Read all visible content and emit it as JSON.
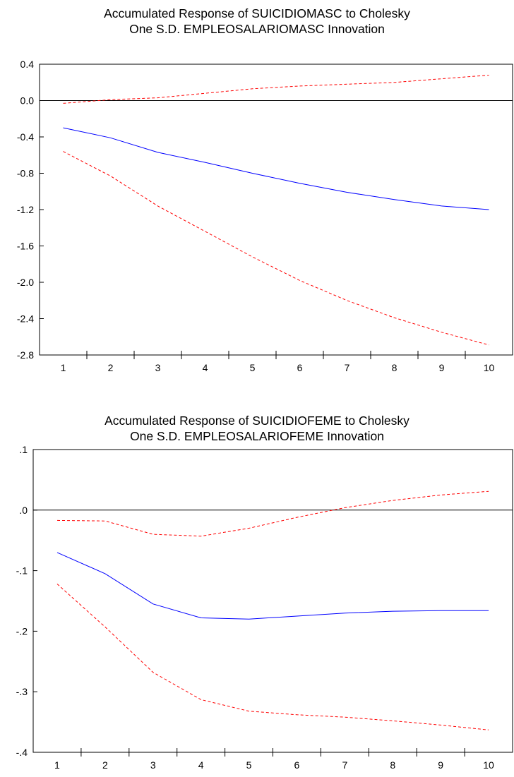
{
  "chart_data": [
    {
      "type": "line",
      "title": [
        "Accumulated Response of SUICIDIOMASC to Cholesky",
        "One S.D. EMPLEOSALARIOMASC Innovation"
      ],
      "x": [
        1,
        2,
        3,
        4,
        5,
        6,
        7,
        8,
        9,
        10
      ],
      "series": [
        {
          "role": "response",
          "color": "#0000ff",
          "style": "solid",
          "values": [
            -0.3,
            -0.41,
            -0.57,
            -0.68,
            -0.8,
            -0.91,
            -1.01,
            -1.09,
            -1.16,
            -1.2
          ]
        },
        {
          "role": "upper-band",
          "color": "#ff0000",
          "style": "dashed",
          "values": [
            -0.03,
            0.01,
            0.03,
            0.08,
            0.13,
            0.16,
            0.18,
            0.2,
            0.24,
            0.28
          ]
        },
        {
          "role": "lower-band",
          "color": "#ff0000",
          "style": "dashed",
          "values": [
            -0.56,
            -0.83,
            -1.16,
            -1.44,
            -1.72,
            -1.98,
            -2.2,
            -2.39,
            -2.55,
            -2.69
          ]
        }
      ],
      "ylim": [
        -2.8,
        0.4
      ],
      "yticks": [
        0.4,
        0.0,
        -0.4,
        -0.8,
        -1.2,
        -1.6,
        -2.0,
        -2.4,
        -2.8
      ],
      "ytick_labels": [
        "0.4",
        "0.0",
        "-0.4",
        "-0.8",
        "-1.2",
        "-1.6",
        "-2.0",
        "-2.4",
        "-2.8"
      ],
      "xtick_labels": [
        "1",
        "2",
        "3",
        "4",
        "5",
        "6",
        "7",
        "8",
        "9",
        "10"
      ],
      "zero_line": true,
      "grid": false
    },
    {
      "type": "line",
      "title": [
        "Accumulated Response of SUICIDIOFEME to Cholesky",
        "One S.D. EMPLEOSALARIOFEME Innovation"
      ],
      "x": [
        1,
        2,
        3,
        4,
        5,
        6,
        7,
        8,
        9,
        10
      ],
      "series": [
        {
          "role": "response",
          "color": "#0000ff",
          "style": "solid",
          "values": [
            -0.07,
            -0.105,
            -0.155,
            -0.178,
            -0.18,
            -0.175,
            -0.17,
            -0.167,
            -0.166,
            -0.166
          ]
        },
        {
          "role": "upper-band",
          "color": "#ff0000",
          "style": "dashed",
          "values": [
            -0.017,
            -0.018,
            -0.04,
            -0.043,
            -0.03,
            -0.012,
            0.004,
            0.016,
            0.025,
            0.031
          ]
        },
        {
          "role": "lower-band",
          "color": "#ff0000",
          "style": "dashed",
          "values": [
            -0.122,
            -0.193,
            -0.268,
            -0.313,
            -0.332,
            -0.338,
            -0.342,
            -0.348,
            -0.355,
            -0.363
          ]
        }
      ],
      "ylim": [
        -0.4,
        0.1
      ],
      "yticks": [
        0.1,
        0.0,
        -0.1,
        -0.2,
        -0.3,
        -0.4
      ],
      "ytick_labels": [
        ".1",
        ".0",
        "-.1",
        "-.2",
        "-.3",
        "-.4"
      ],
      "xtick_labels": [
        "1",
        "2",
        "3",
        "4",
        "5",
        "6",
        "7",
        "8",
        "9",
        "10"
      ],
      "zero_line": true,
      "grid": false
    }
  ]
}
